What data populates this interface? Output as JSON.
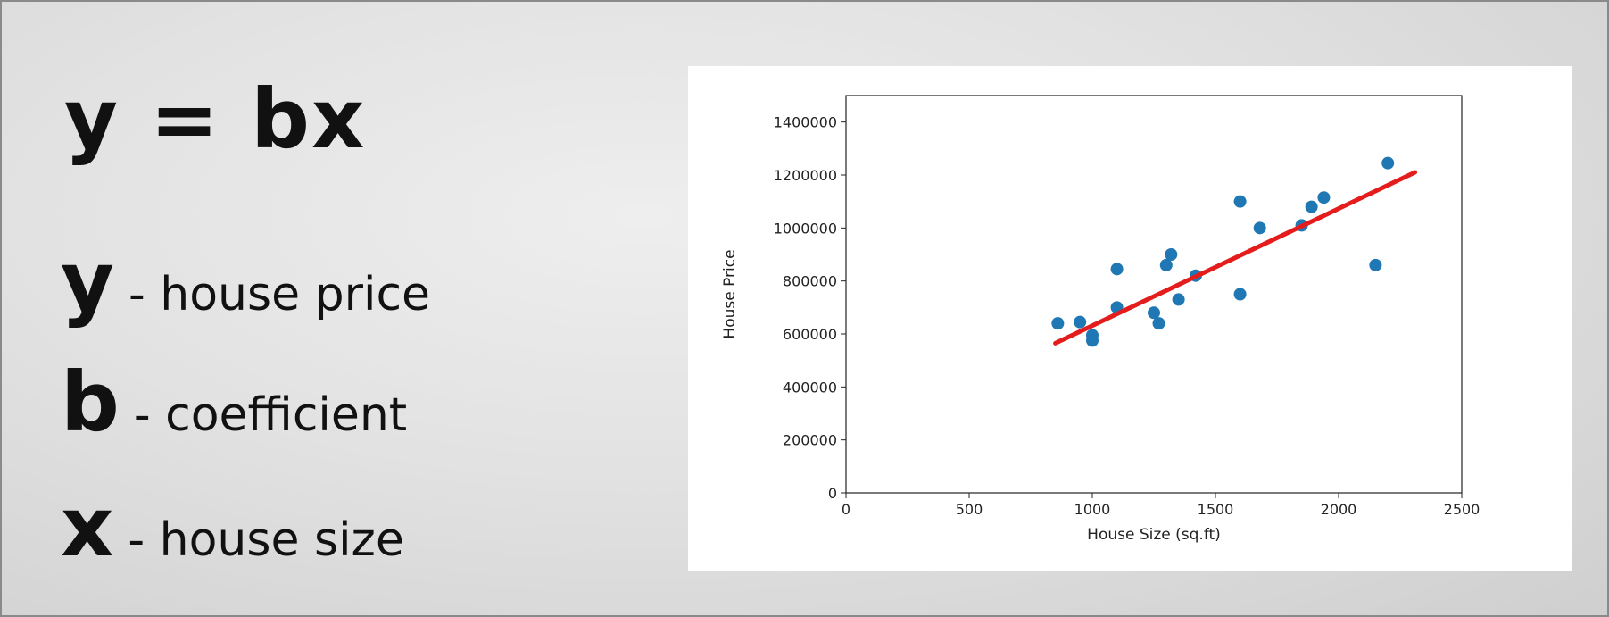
{
  "slide": {
    "formula": "y = bx",
    "definitions": [
      {
        "var": "y",
        "text": "- house price"
      },
      {
        "var": "b",
        "text": "- coefficient"
      },
      {
        "var": "x",
        "text": "- house size"
      }
    ]
  },
  "chart_data": {
    "type": "scatter",
    "title": "",
    "xlabel": "House Size (sq.ft)",
    "ylabel": "House Price",
    "xlim": [
      0,
      2500
    ],
    "ylim": [
      0,
      1500000
    ],
    "xticks": [
      0,
      500,
      1000,
      1500,
      2000,
      2500
    ],
    "yticks": [
      0,
      200000,
      400000,
      600000,
      800000,
      1000000,
      1200000,
      1400000
    ],
    "grid": false,
    "points": {
      "color": "#1f77b4",
      "x": [
        860,
        950,
        1000,
        1000,
        1100,
        1100,
        1250,
        1270,
        1300,
        1320,
        1350,
        1420,
        1600,
        1600,
        1680,
        1850,
        1890,
        1940,
        2150,
        2200
      ],
      "y": [
        640000,
        645000,
        595000,
        575000,
        845000,
        700000,
        680000,
        640000,
        860000,
        900000,
        730000,
        820000,
        1100000,
        750000,
        1000000,
        1010000,
        1080000,
        1115000,
        860000,
        1245000
      ]
    },
    "fit_line": {
      "color": "#e51c1c",
      "x": [
        850,
        2310
      ],
      "y": [
        565000,
        1210000
      ]
    }
  }
}
